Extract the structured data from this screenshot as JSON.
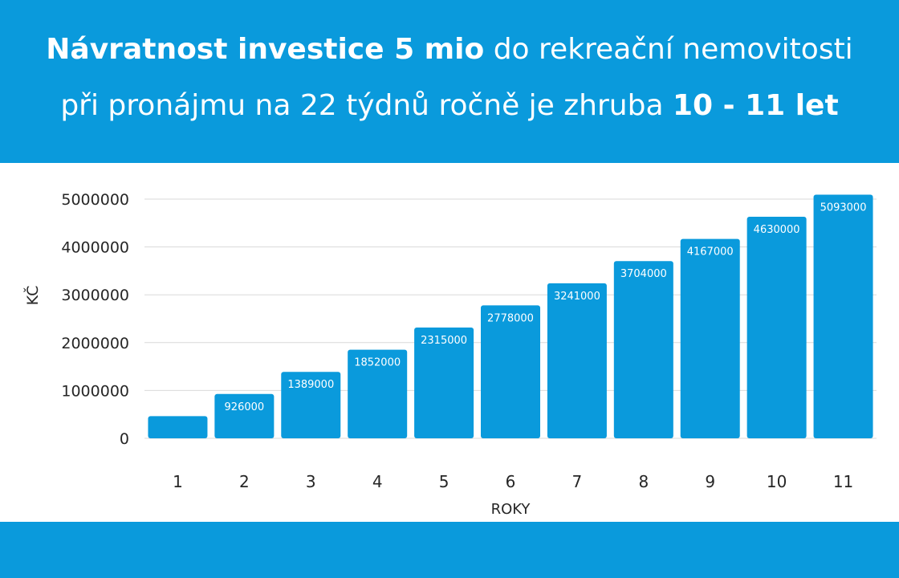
{
  "header": {
    "line1": {
      "bold": "Návratnost investice 5 mio",
      "normal": " do rekreační nemovitosti"
    },
    "line2": {
      "normal": "při pronájmu na 22 týdnů ročně je zhruba ",
      "bold": "10 - 11 let"
    }
  },
  "colors": {
    "accent": "#0A9ADC",
    "bar": "#0A9ADC",
    "grid": "#D9D9D9",
    "text": "#262626"
  },
  "chart_data": {
    "type": "bar",
    "title": "",
    "xlabel": "ROKY",
    "ylabel": "KČ",
    "categories": [
      "1",
      "2",
      "3",
      "4",
      "5",
      "6",
      "7",
      "8",
      "9",
      "10",
      "11"
    ],
    "values": [
      463000,
      926000,
      1389000,
      1852000,
      2315000,
      2778000,
      3241000,
      3704000,
      4167000,
      4630000,
      5093000
    ],
    "data_labels": [
      "",
      "926000",
      "1389000",
      "1852000",
      "2315000",
      "2778000",
      "3241000",
      "3704000",
      "4167000",
      "4630000",
      "5093000"
    ],
    "yticks": [
      "0",
      "1000000",
      "2000000",
      "3000000",
      "4000000",
      "5000000"
    ],
    "ylim": [
      0,
      5000000
    ],
    "grid": true,
    "legend": false
  }
}
